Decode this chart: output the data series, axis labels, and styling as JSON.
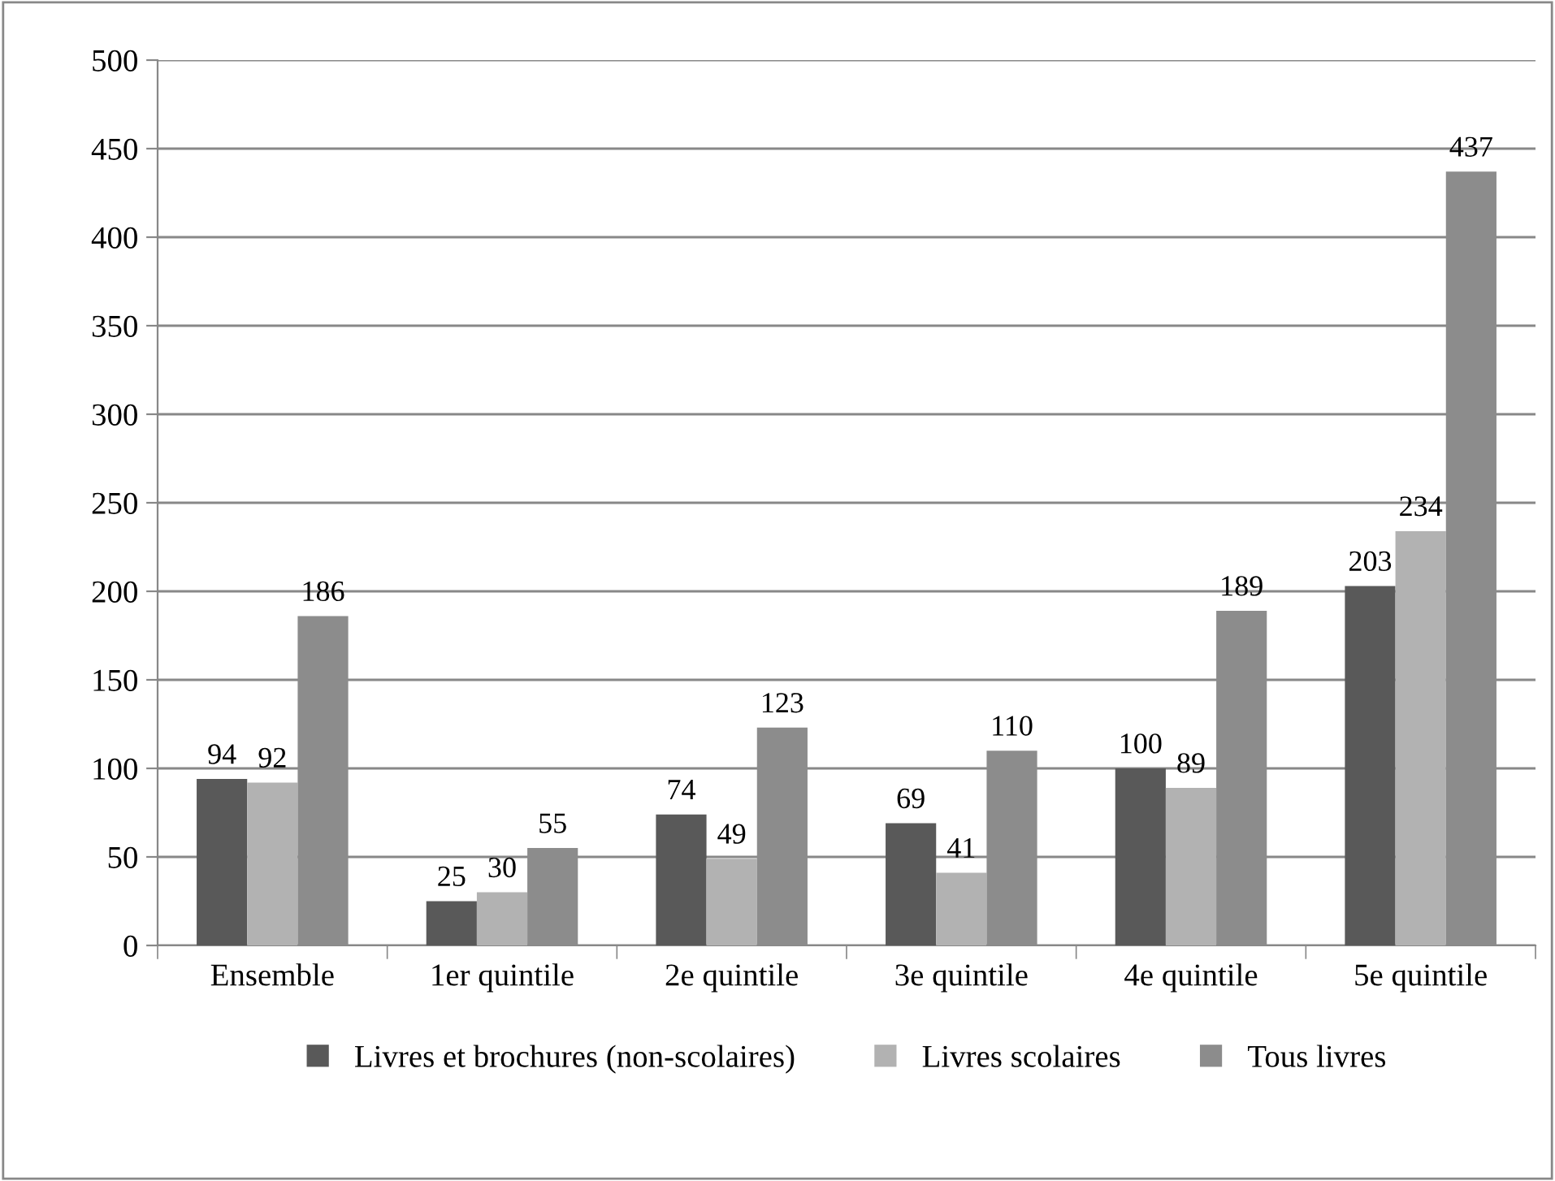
{
  "chart_data": {
    "type": "bar",
    "categories": [
      "Ensemble",
      "1er quintile",
      "2e quintile",
      "3e quintile",
      "4e quintile",
      "5e quintile"
    ],
    "series": [
      {
        "name": "Livres et brochures (non-scolaires)",
        "color": "#595959",
        "values": [
          94,
          25,
          74,
          69,
          100,
          203
        ]
      },
      {
        "name": "Livres scolaires",
        "color": "#b2b2b2",
        "values": [
          92,
          30,
          49,
          41,
          89,
          234
        ]
      },
      {
        "name": "Tous livres",
        "color": "#8c8c8c",
        "values": [
          186,
          55,
          123,
          110,
          189,
          437
        ]
      }
    ],
    "ylim": [
      0,
      500
    ],
    "yticks": [
      0,
      50,
      100,
      150,
      200,
      250,
      300,
      350,
      400,
      450,
      500
    ],
    "grid": "y",
    "legend": "bottom",
    "data_labels": true
  }
}
